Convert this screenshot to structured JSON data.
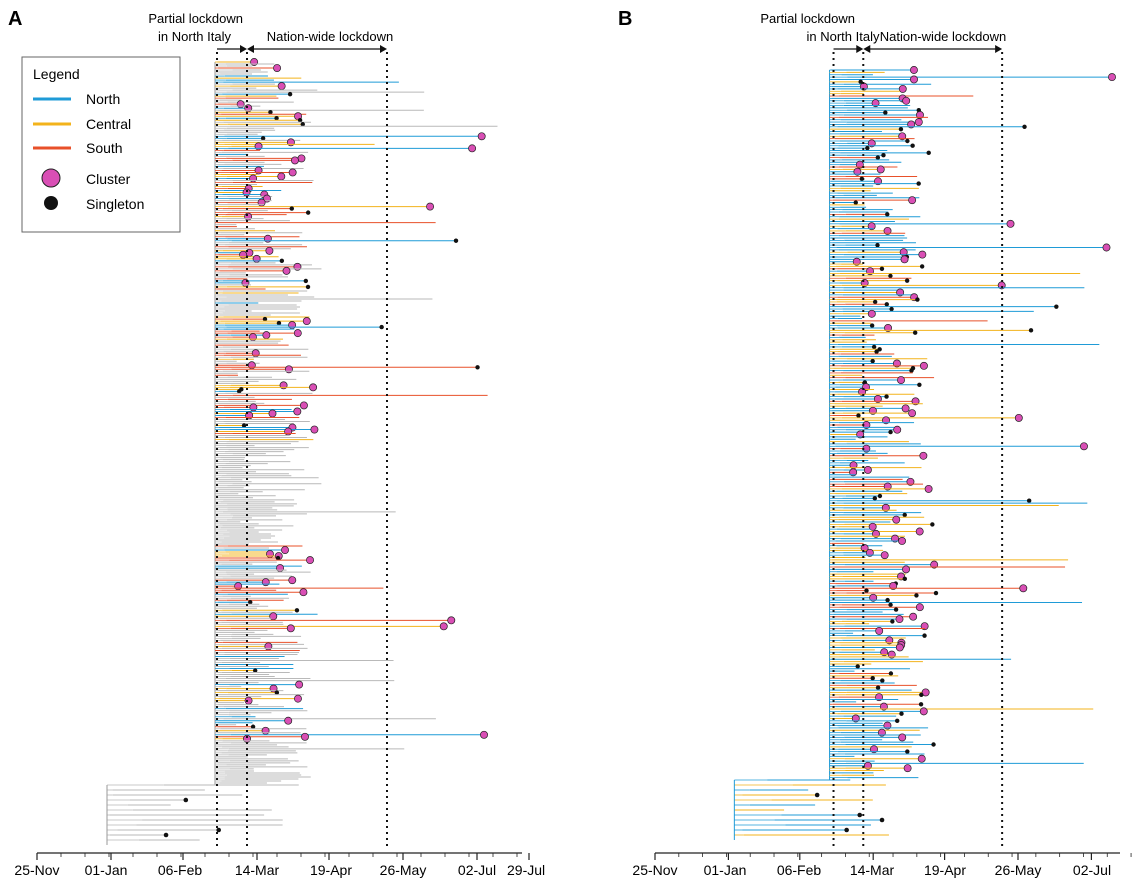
{
  "chart_data": {
    "type": "tree",
    "series_colors": {
      "North": "#1f9bd7",
      "Central": "#f3b31b",
      "South": "#e8502a",
      "Unassigned": "#b9b9b9"
    },
    "marker_colors": {
      "Cluster": "#d94fb5",
      "Singleton": "#111111"
    },
    "legend": {
      "title": "Legend",
      "placement": "top-left of panel A",
      "lines": [
        {
          "label": "North",
          "color": "#1f9bd7"
        },
        {
          "label": "Central",
          "color": "#f3b31b"
        },
        {
          "label": "South",
          "color": "#e8502a"
        }
      ],
      "markers": [
        {
          "label": "Cluster",
          "color": "#d94fb5"
        },
        {
          "label": "Singleton",
          "color": "#111111"
        }
      ]
    },
    "annotations": {
      "partial_line1": "Partial lockdown",
      "partial_line2": "in North Italy",
      "nation": "Nation-wide lockdown"
    },
    "events": {
      "partial_lockdown_start": "2020-02-23",
      "national_lockdown_start": "2020-03-09",
      "national_lockdown_end": "2020-05-18"
    },
    "panels": [
      {
        "label": "A",
        "x_ticks": [
          "25-Nov",
          "01-Jan",
          "06-Feb",
          "14-Mar",
          "19-Apr",
          "26-May",
          "02-Jul",
          "29-Jul"
        ]
      },
      {
        "label": "B",
        "x_ticks": [
          "25-Nov",
          "01-Jan",
          "06-Feb",
          "14-Mar",
          "19-Apr",
          "26-May",
          "02-Jul"
        ]
      }
    ]
  }
}
